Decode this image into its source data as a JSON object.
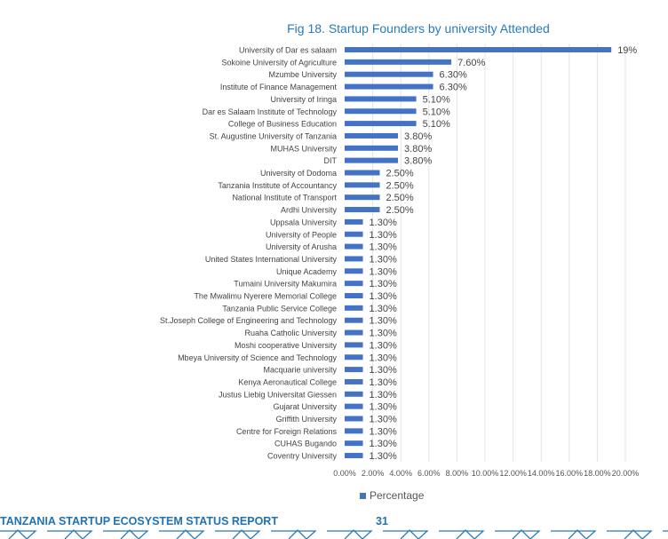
{
  "chart_data": {
    "type": "bar",
    "orientation": "horizontal",
    "title": "Fig 18. Startup Founders by university Attended",
    "categories": [
      "University of Dar es salaam",
      "Sokoine University of Agriculture",
      "Mzumbe University",
      "Institute of Finance Management",
      "University of Iringa",
      "Dar es Salaam Institute of Technology",
      "College of Business Education",
      "St. Augustine University of Tanzania",
      "MUHAS University",
      "DIT",
      "University of Dodoma",
      "Tanzania Institute of Accountancy",
      "National Institute of Transport",
      "Ardhi University",
      "Uppsala University",
      "University of People",
      "University of Arusha",
      "United States International University",
      "Unique Academy",
      "Tumaini University Makumira",
      "The Mwalimu Nyerere Memorial College",
      "Tanzania Public Service College",
      "St.Joseph College of Engineering and Technology",
      "Ruaha Catholic University",
      "Moshi cooperative University",
      "Mbeya University of Science and Technology",
      "Macquarie university",
      "Kenya Aeronautical College",
      "Justus Liebig Universitat Giessen",
      "Gujarat University",
      "Griffith University",
      "Centre for Foreign Relations",
      "CUHAS Bugando",
      "Coventry University"
    ],
    "values": [
      19,
      7.6,
      6.3,
      6.3,
      5.1,
      5.1,
      5.1,
      3.8,
      3.8,
      3.8,
      2.5,
      2.5,
      2.5,
      2.5,
      1.3,
      1.3,
      1.3,
      1.3,
      1.3,
      1.3,
      1.3,
      1.3,
      1.3,
      1.3,
      1.3,
      1.3,
      1.3,
      1.3,
      1.3,
      1.3,
      1.3,
      1.3,
      1.3,
      1.3
    ],
    "data_labels": [
      "19%",
      "7.60%",
      "6.30%",
      "6.30%",
      "5.10%",
      "5.10%",
      "5.10%",
      "3.80%",
      "3.80%",
      "3.80%",
      "2.50%",
      "2.50%",
      "2.50%",
      "2.50%",
      "1.30%",
      "1.30%",
      "1.30%",
      "1.30%",
      "1.30%",
      "1.30%",
      "1.30%",
      "1.30%",
      "1.30%",
      "1.30%",
      "1.30%",
      "1.30%",
      "1.30%",
      "1.30%",
      "1.30%",
      "1.30%",
      "1.30%",
      "1.30%",
      "1.30%",
      "1.30%"
    ],
    "xlim": [
      0,
      20
    ],
    "xticks": [
      "0.00%",
      "2.00%",
      "4.00%",
      "6.00%",
      "8.00%",
      "10.00%",
      "12.00%",
      "14.00%",
      "16.00%",
      "18.00%",
      "20.00%"
    ],
    "xlabel": "",
    "ylabel": "",
    "grid": true,
    "legend": {
      "entries": [
        "Percentage"
      ],
      "placement": "bottom"
    },
    "color": "#4472c4"
  },
  "footer": {
    "title": "TANZANIA STARTUP ECOSYSTEM STATUS REPORT",
    "page": "31"
  }
}
